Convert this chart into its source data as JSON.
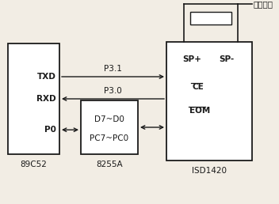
{
  "bg_color": "#f2ede4",
  "line_color": "#1a1a1a",
  "label_89c52": "89C52",
  "label_8255a": "8255A",
  "label_isd1420": "ISD1420",
  "label_txd": "TXD",
  "label_rxd": "RXD",
  "label_p0": "P0",
  "label_p31": "P3.1",
  "label_p30": "P3.0",
  "label_sp_plus": "SP+",
  "label_sp_minus": "SP-",
  "label_ce": "CE",
  "label_eom": "EOM",
  "label_d7d0": "D7~D0",
  "label_pc7pc0": "PC7~PC0",
  "label_phone": "至电话线",
  "fs": 7.5
}
